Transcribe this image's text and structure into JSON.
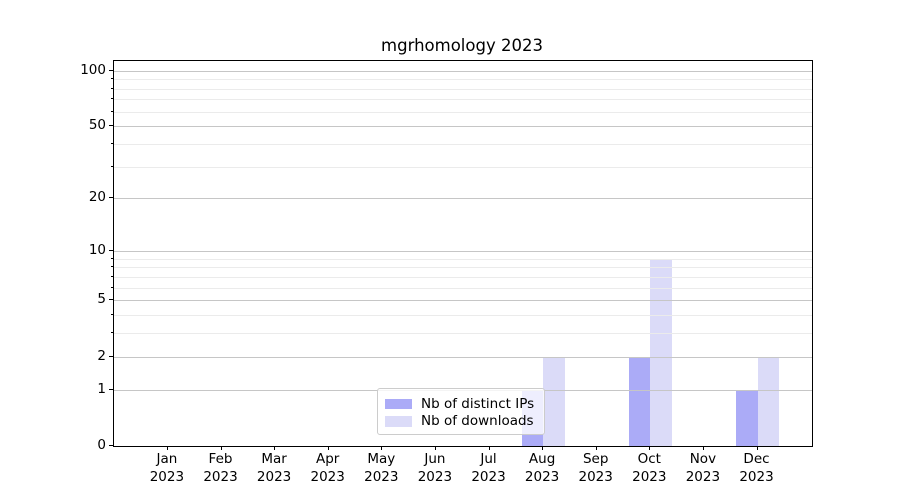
{
  "chart_data": {
    "type": "bar",
    "title": "mgrhomology 2023",
    "categories": [
      "Jan",
      "Feb",
      "Mar",
      "Apr",
      "May",
      "Jun",
      "Jul",
      "Aug",
      "Sep",
      "Oct",
      "Nov",
      "Dec"
    ],
    "category_year": "2023",
    "series": [
      {
        "name": "Nb of distinct IPs",
        "color": "#ababf7",
        "values": [
          0,
          0,
          0,
          0,
          0,
          0,
          0,
          1,
          0,
          2,
          0,
          1
        ]
      },
      {
        "name": "Nb of downloads",
        "color": "#dbdbf8",
        "values": [
          0,
          0,
          0,
          0,
          0,
          0,
          0,
          2,
          0,
          9,
          0,
          2
        ]
      }
    ],
    "y_axis": {
      "scale": "log10(1+x)",
      "major_ticks": [
        0,
        1,
        2,
        5,
        10,
        20,
        50,
        100
      ],
      "minor_ticks": [
        3,
        4,
        6,
        7,
        8,
        9,
        30,
        40,
        60,
        70,
        80,
        90
      ],
      "ylim": [
        0,
        112
      ]
    },
    "x_axis": {
      "label_format": "month over year"
    },
    "legend": {
      "position": "lower center-left",
      "entries": [
        "Nb of distinct IPs",
        "Nb of downloads"
      ]
    },
    "grid": "on",
    "colors": {
      "major_grid": "#c6c6c6",
      "minor_grid": "#ebebeb",
      "spine": "#000000",
      "legend_border": "#cccccc"
    }
  }
}
